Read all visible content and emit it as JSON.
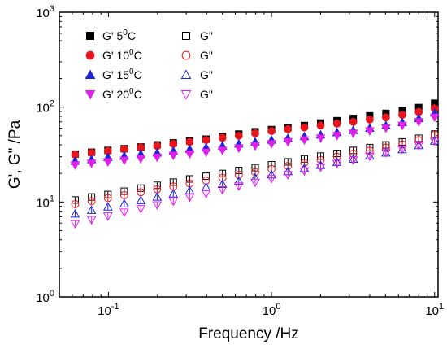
{
  "chart_data": {
    "type": "scatter",
    "title": "",
    "xlabel": "Frequency /Hz",
    "ylabel": "G', G\" /Pa",
    "xscale": "log",
    "yscale": "log",
    "xlim": [
      0.05,
      10.5
    ],
    "ylim": [
      1,
      1000
    ],
    "xticks": [
      {
        "value": 0.1,
        "base": "10",
        "exp": "-1"
      },
      {
        "value": 1,
        "base": "10",
        "exp": "0"
      },
      {
        "value": 10,
        "base": "10",
        "exp": "1"
      }
    ],
    "yticks": [
      {
        "value": 1,
        "base": "10",
        "exp": "0"
      },
      {
        "value": 10,
        "base": "10",
        "exp": "1"
      },
      {
        "value": 100,
        "base": "10",
        "exp": "2"
      },
      {
        "value": 1000,
        "base": "10",
        "exp": "3"
      }
    ],
    "grid": false,
    "legend": "top-left",
    "x": [
      0.0625,
      0.0788,
      0.0993,
      0.125,
      0.158,
      0.199,
      0.25,
      0.315,
      0.397,
      0.5,
      0.63,
      0.794,
      1.0,
      1.26,
      1.59,
      2.0,
      2.52,
      3.17,
      4.0,
      5.03,
      6.34,
      7.99,
      10.0
    ],
    "series": [
      {
        "name": "G' 5",
        "legend_sup": "0",
        "legend_unit": "C",
        "marker": "square-filled",
        "color": "#000000",
        "values": [
          32,
          33.5,
          35,
          36.5,
          38,
          40,
          42,
          44,
          46,
          49,
          52,
          55,
          58,
          61,
          64,
          68,
          72,
          76,
          81,
          86,
          92,
          99,
          110
        ]
      },
      {
        "name": "G'' 5C",
        "legend_label": "G\"",
        "marker": "square-open",
        "color": "#000000",
        "values": [
          10.5,
          11.3,
          12.0,
          13.0,
          14.0,
          15.0,
          16.2,
          17.5,
          18.7,
          20.0,
          21.5,
          23.0,
          24.7,
          26.5,
          28.5,
          30.5,
          32.5,
          35.0,
          37.5,
          40.0,
          43.0,
          47.0,
          52.0
        ]
      },
      {
        "name": "G' 10",
        "legend_sup": "0",
        "legend_unit": "C",
        "marker": "circle-filled",
        "color": "#e8141c",
        "values": [
          31.5,
          33,
          34.5,
          36,
          37.5,
          39,
          41,
          43,
          45,
          47.5,
          50,
          53,
          56,
          58.5,
          61,
          64,
          67,
          70,
          74,
          78,
          83,
          89,
          97
        ]
      },
      {
        "name": "G'' 10C",
        "legend_label": "G\"",
        "marker": "circle-open",
        "color": "#e8141c",
        "values": [
          9.5,
          10.2,
          11.0,
          11.8,
          12.7,
          13.6,
          14.6,
          15.7,
          16.8,
          18.0,
          19.3,
          20.7,
          22.3,
          24.0,
          25.8,
          27.8,
          30.0,
          32.3,
          34.8,
          37.5,
          40.5,
          45.0,
          51.0
        ]
      },
      {
        "name": "G' 15",
        "legend_sup": "0",
        "legend_unit": "C",
        "marker": "triangle-up-filled",
        "color": "#1f25d6",
        "values": [
          27,
          28,
          29.5,
          30.5,
          32,
          33,
          34.5,
          36,
          37.5,
          39,
          41,
          43,
          45,
          47,
          49,
          51,
          54,
          57,
          60,
          64,
          69,
          76,
          87
        ]
      },
      {
        "name": "G'' 15C",
        "legend_label": "G\"",
        "marker": "triangle-up-open",
        "color": "#1f25d6",
        "values": [
          7.5,
          8.2,
          8.9,
          9.6,
          10.4,
          11.3,
          12.2,
          13.2,
          14.3,
          15.4,
          16.6,
          18.0,
          19.4,
          21.0,
          22.6,
          24.4,
          26.3,
          28.4,
          30.6,
          33.0,
          35.8,
          39.5,
          44.0
        ]
      },
      {
        "name": "G' 20",
        "legend_sup": "0",
        "legend_unit": "C",
        "marker": "triangle-down-filled",
        "color": "#e020e8",
        "values": [
          24.5,
          25.5,
          26.5,
          27.5,
          28.5,
          29.5,
          31,
          32,
          33.5,
          35,
          37,
          39,
          41,
          43,
          45,
          47,
          50,
          53,
          56,
          60,
          64,
          70,
          78
        ]
      },
      {
        "name": "G'' 20C",
        "legend_label": "G\"",
        "marker": "triangle-down-open",
        "color": "#e020e8",
        "values": [
          5.9,
          6.5,
          7.1,
          7.8,
          8.5,
          9.3,
          10.2,
          11.2,
          12.3,
          13.4,
          14.7,
          16.1,
          17.6,
          19.3,
          21.2,
          23.2,
          25.4,
          27.7,
          30.3,
          33.0,
          36.0,
          39.5,
          43.5
        ]
      }
    ]
  }
}
